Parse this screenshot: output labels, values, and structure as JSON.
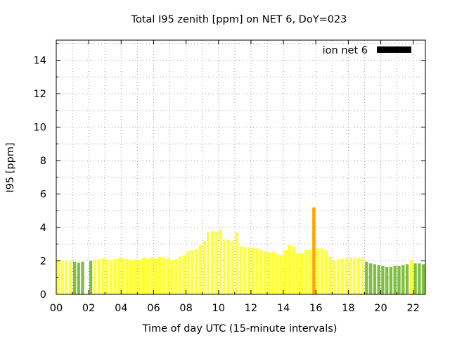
{
  "chart_data": {
    "type": "bar",
    "title": "Total I95 zenith [ppm] on NET 6, DoY=023",
    "xlabel": "Time of day UTC (15-minute intervals)",
    "ylabel": "I95 [ppm]",
    "xlim": [
      0,
      22.75
    ],
    "ylim": [
      0,
      15.2
    ],
    "grid": true,
    "legend_position": "top-right",
    "x_ticks": [
      "00",
      "02",
      "04",
      "06",
      "08",
      "10",
      "12",
      "14",
      "16",
      "18",
      "20",
      "22"
    ],
    "x_tick_values": [
      0,
      2,
      4,
      6,
      8,
      10,
      12,
      14,
      16,
      18,
      20,
      22
    ],
    "y_ticks": [
      "0",
      "2",
      "4",
      "6",
      "8",
      "10",
      "12",
      "14"
    ],
    "y_tick_values": [
      0,
      2,
      4,
      6,
      8,
      10,
      12,
      14
    ],
    "legend": [
      {
        "label": "ion net 6",
        "color": "#000000"
      }
    ],
    "colors": {
      "green": "#7fbf3f",
      "yellow": "#ffff33",
      "orange": "#ffa500"
    },
    "series": [
      {
        "interval_hours": 0.25,
        "values": [
          2.1,
          2.05,
          2.0,
          2.0,
          1.95,
          1.9,
          1.95,
          null,
          2.0,
          2.05,
          2.1,
          2.15,
          2.1,
          2.05,
          2.1,
          2.2,
          2.15,
          2.1,
          2.05,
          2.1,
          2.05,
          2.2,
          2.15,
          2.2,
          2.15,
          2.25,
          2.2,
          2.15,
          2.05,
          2.1,
          2.25,
          2.35,
          2.55,
          2.65,
          2.7,
          2.95,
          3.2,
          3.7,
          3.8,
          3.75,
          3.85,
          3.3,
          3.25,
          3.15,
          3.7,
          2.9,
          2.85,
          2.8,
          2.8,
          2.75,
          2.65,
          2.55,
          2.5,
          2.55,
          2.4,
          2.35,
          2.65,
          2.95,
          2.85,
          2.45,
          2.45,
          2.65,
          2.65,
          5.2,
          2.75,
          2.75,
          2.65,
          2.25,
          2.0,
          2.1,
          2.15,
          2.15,
          2.2,
          2.15,
          2.2,
          2.2,
          1.95,
          1.85,
          1.8,
          1.75,
          1.7,
          1.65,
          1.65,
          1.7,
          1.7,
          1.75,
          1.8,
          2.05,
          1.85,
          1.85,
          1.8
        ],
        "category_colors": [
          "yellow",
          "yellow",
          "yellow",
          "yellow",
          "green",
          "green",
          "green",
          "none",
          "green",
          "yellow",
          "yellow",
          "yellow",
          "yellow",
          "yellow",
          "yellow",
          "yellow",
          "yellow",
          "yellow",
          "yellow",
          "yellow",
          "yellow",
          "yellow",
          "yellow",
          "yellow",
          "yellow",
          "yellow",
          "yellow",
          "yellow",
          "yellow",
          "yellow",
          "yellow",
          "yellow",
          "yellow",
          "yellow",
          "yellow",
          "yellow",
          "yellow",
          "yellow",
          "yellow",
          "yellow",
          "yellow",
          "yellow",
          "yellow",
          "yellow",
          "yellow",
          "yellow",
          "yellow",
          "yellow",
          "yellow",
          "yellow",
          "yellow",
          "yellow",
          "yellow",
          "yellow",
          "yellow",
          "yellow",
          "yellow",
          "yellow",
          "yellow",
          "yellow",
          "yellow",
          "yellow",
          "yellow",
          "orange",
          "yellow",
          "yellow",
          "yellow",
          "yellow",
          "yellow",
          "yellow",
          "yellow",
          "yellow",
          "yellow",
          "yellow",
          "yellow",
          "yellow",
          "green",
          "green",
          "green",
          "green",
          "green",
          "green",
          "green",
          "green",
          "green",
          "green",
          "green",
          "yellow",
          "green",
          "green",
          "green"
        ]
      }
    ]
  }
}
